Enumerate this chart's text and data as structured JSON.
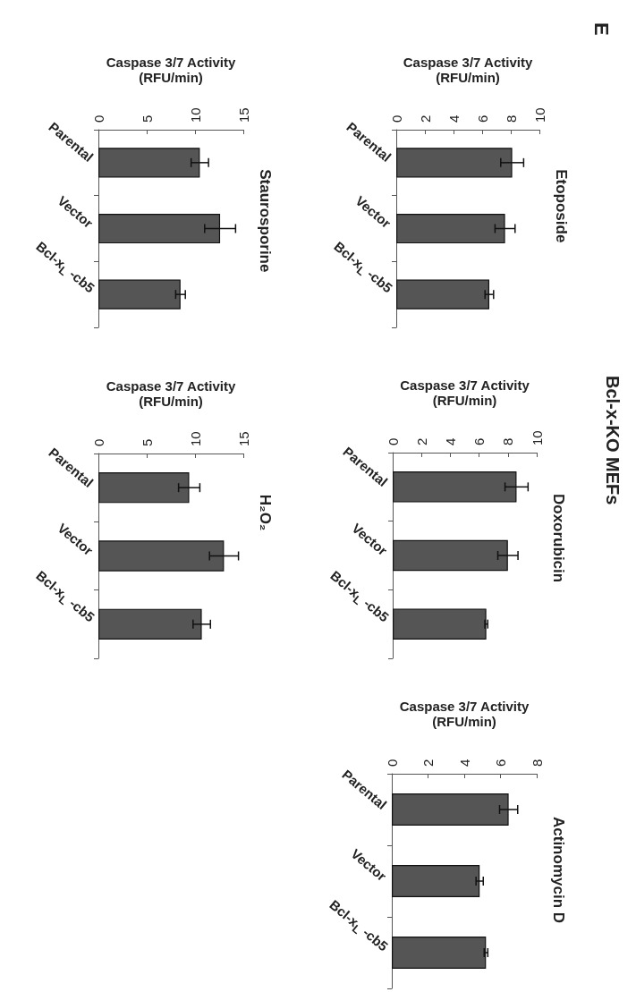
{
  "chart_data": [
    {
      "type": "bar",
      "orientation": "horizontal",
      "title": "Etoposide",
      "xlabel": "Caspase 3/7 Activity (RFU/min)",
      "categories": [
        "Parental",
        "Vector",
        "Bcl-x$_{L}$ -cb5"
      ],
      "values": [
        8.1,
        7.6,
        6.5
      ],
      "errors": [
        0.8,
        0.7,
        0.3
      ],
      "color": "#555555",
      "xlim": [
        0,
        10
      ],
      "xticks": [
        0,
        2,
        4,
        6,
        8,
        10
      ],
      "grid": false,
      "annotations": [
        "E"
      ]
    },
    {
      "type": "bar",
      "orientation": "horizontal",
      "title": "Doxorubicin",
      "xlabel": "Caspase 3/7 Activity (RFU/min)",
      "categories": [
        "Parental",
        "Vector",
        "Bcl-x$_{L}$ -cb5"
      ],
      "values": [
        8.6,
        8.0,
        6.5
      ],
      "errors": [
        0.8,
        0.7,
        0.1
      ],
      "color": "#555555",
      "xlim": [
        0,
        10
      ],
      "xticks": [
        0,
        2,
        4,
        6,
        8,
        10
      ],
      "grid": false,
      "annotations": [
        "Bcl-x-KO MEFs"
      ]
    },
    {
      "type": "bar",
      "orientation": "horizontal",
      "title": "Actinomycin D",
      "xlabel": "Caspase 3/7 Activity (RFU/min)",
      "categories": [
        "Parental",
        "Vector",
        "Bcl-x$_{L}$ -cb5"
      ],
      "values": [
        6.45,
        4.85,
        5.2
      ],
      "errors": [
        0.5,
        0.2,
        0.1
      ],
      "color": "#555555",
      "xlim": [
        0,
        8
      ],
      "xticks": [
        0,
        2,
        4,
        6,
        8
      ],
      "grid": false
    },
    {
      "type": "bar",
      "orientation": "horizontal",
      "title": "Staurosporine",
      "xlabel": "Caspase 3/7 Activity (RFU/min)",
      "categories": [
        "Parental",
        "Vector",
        "Bcl-x$_{L}$ -cb5"
      ],
      "values": [
        10.5,
        12.6,
        8.5
      ],
      "errors": [
        0.9,
        1.6,
        0.5
      ],
      "color": "#555555",
      "xlim": [
        0,
        15
      ],
      "xticks": [
        0,
        5,
        10,
        15
      ],
      "grid": false
    },
    {
      "type": "bar",
      "orientation": "horizontal",
      "title": "H₂O₂",
      "xlabel": "Caspase 3/7 Activity (RFU/min)",
      "categories": [
        "Parental",
        "Vector",
        "Bcl-x$_{L}$ -cb5"
      ],
      "values": [
        9.4,
        13.0,
        10.7
      ],
      "errors": [
        1.1,
        1.5,
        0.9
      ],
      "color": "#555555",
      "xlim": [
        0,
        15
      ],
      "xticks": [
        0,
        5,
        10,
        15
      ],
      "grid": false
    }
  ]
}
